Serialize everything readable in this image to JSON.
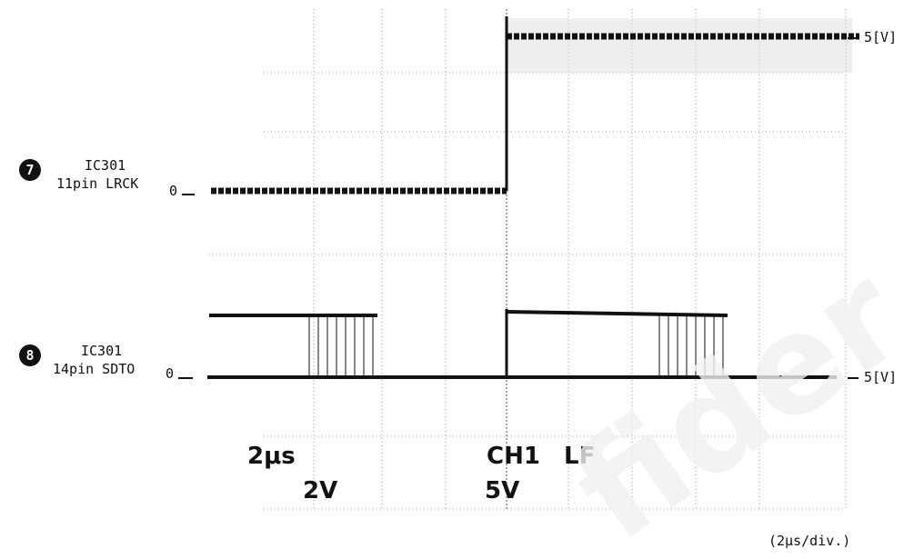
{
  "figure": {
    "channels": [
      {
        "number": "7",
        "ic": "IC301",
        "signal": "11pin LRCK",
        "zero": "0",
        "scale": "5[V]"
      },
      {
        "number": "8",
        "ic": "IC301",
        "signal": "14pin SDTO",
        "zero": "0",
        "scale": "5[V]"
      }
    ],
    "scope": {
      "timebase": "2μs",
      "ch1_volts": "2V",
      "ch2_volts": "5V",
      "trigger": "CH1",
      "filter": "LF"
    },
    "time_division": "(2μs/div.)",
    "watermark": "fider"
  }
}
